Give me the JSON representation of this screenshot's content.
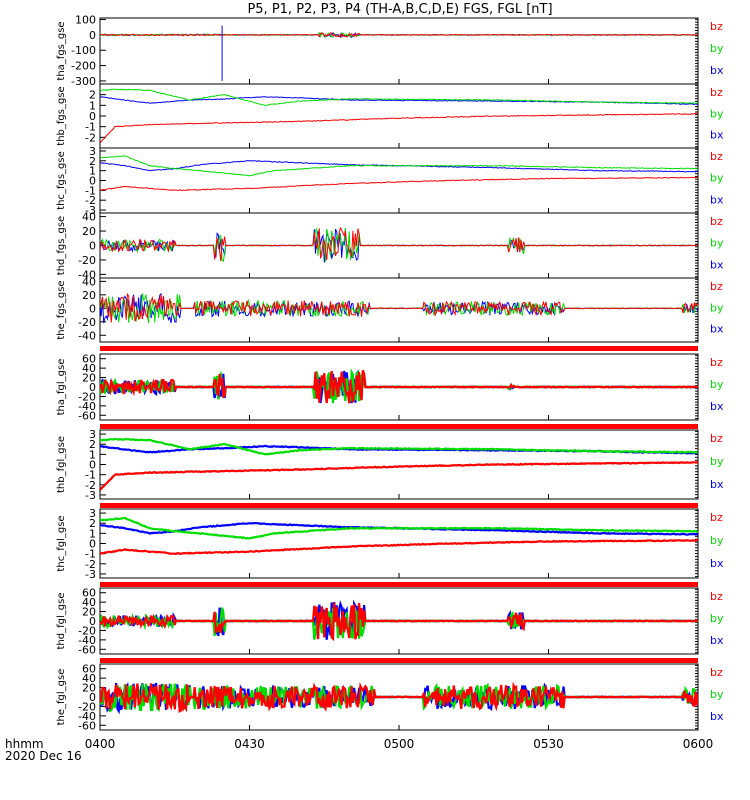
{
  "title": "P5, P1, P2, P3, P4 (TH-A,B,C,D,E) FGS, FGL [nT]",
  "footer": {
    "line1": "hhmm",
    "line2": "2020 Dec 16"
  },
  "colors": {
    "bz": "#ff0000",
    "by": "#00dd00",
    "bx": "#0000ff",
    "axis": "#000000",
    "bar": "#ff0000"
  },
  "chart_data": {
    "type": "line",
    "title": "P5, P1, P2, P3, P4 (TH-A,B,C,D,E) FGS, FGL [nT]",
    "x_ticks": [
      "0400",
      "0430",
      "0500",
      "0530",
      "0600"
    ],
    "x_range_minutes": [
      0,
      120
    ],
    "legend": [
      "bz",
      "by",
      "bx"
    ],
    "legend_placement": "right",
    "panels": [
      {
        "ylabel": "tha_fgs_gse",
        "yticks": [
          "100",
          "0",
          "-100",
          "-200",
          "-300"
        ],
        "ylim": [
          -320,
          110
        ],
        "style": "thin",
        "bar_below": false,
        "bz": [
          [
            0,
            0
          ],
          [
            120,
            0
          ]
        ],
        "by": [
          [
            0,
            0
          ],
          [
            120,
            0
          ]
        ],
        "bx": [
          [
            0,
            0
          ],
          [
            120,
            0
          ]
        ],
        "bursts": [
          {
            "t": [
              0,
              24
            ],
            "amp": 4
          },
          {
            "t": [
              44,
              52
            ],
            "amp": 15
          }
        ],
        "spikes": [
          {
            "t": 24.5,
            "lo": -300,
            "hi": 60
          }
        ]
      },
      {
        "ylabel": "thb_fgs_gse",
        "yticks": [
          "2",
          "1",
          "0",
          "-1",
          "-2"
        ],
        "ylim": [
          -3,
          3
        ],
        "style": "thin",
        "bar_below": false,
        "bz": [
          [
            0,
            -2.5
          ],
          [
            3,
            -1
          ],
          [
            10,
            -0.8
          ],
          [
            20,
            -0.7
          ],
          [
            40,
            -0.5
          ],
          [
            60,
            -0.2
          ],
          [
            80,
            0
          ],
          [
            100,
            0.1
          ],
          [
            120,
            0.2
          ]
        ],
        "by": [
          [
            0,
            2.4
          ],
          [
            3,
            2.5
          ],
          [
            10,
            2.4
          ],
          [
            18,
            1.5
          ],
          [
            25,
            2
          ],
          [
            33,
            1
          ],
          [
            40,
            1.4
          ],
          [
            50,
            1.6
          ],
          [
            80,
            1.5
          ],
          [
            100,
            1.3
          ],
          [
            120,
            1.2
          ]
        ],
        "bx": [
          [
            0,
            1.8
          ],
          [
            3,
            1.6
          ],
          [
            10,
            1.2
          ],
          [
            18,
            1.5
          ],
          [
            25,
            1.6
          ],
          [
            33,
            1.8
          ],
          [
            40,
            1.7
          ],
          [
            50,
            1.5
          ],
          [
            80,
            1.4
          ],
          [
            100,
            1.3
          ],
          [
            120,
            1.1
          ]
        ],
        "bursts": [],
        "spikes": []
      },
      {
        "ylabel": "thc_fgs_gse",
        "yticks": [
          "3",
          "2",
          "1",
          "0",
          "-1",
          "-2",
          "-3"
        ],
        "ylim": [
          -3.3,
          3.3
        ],
        "style": "thin",
        "bar_below": false,
        "bz": [
          [
            0,
            -1
          ],
          [
            5,
            -0.6
          ],
          [
            15,
            -1
          ],
          [
            30,
            -0.8
          ],
          [
            50,
            -0.3
          ],
          [
            70,
            0
          ],
          [
            90,
            0.2
          ],
          [
            120,
            0.3
          ]
        ],
        "by": [
          [
            0,
            2.3
          ],
          [
            5,
            2.5
          ],
          [
            10,
            1.5
          ],
          [
            15,
            1.2
          ],
          [
            20,
            1
          ],
          [
            30,
            0.5
          ],
          [
            35,
            1
          ],
          [
            50,
            1.5
          ],
          [
            80,
            1.5
          ],
          [
            100,
            1.3
          ],
          [
            120,
            1.2
          ]
        ],
        "bx": [
          [
            0,
            1.8
          ],
          [
            5,
            1.5
          ],
          [
            10,
            1
          ],
          [
            15,
            1.2
          ],
          [
            20,
            1.6
          ],
          [
            30,
            2
          ],
          [
            40,
            1.8
          ],
          [
            50,
            1.6
          ],
          [
            80,
            1.3
          ],
          [
            100,
            1
          ],
          [
            120,
            0.9
          ]
        ],
        "bursts": [],
        "spikes": []
      },
      {
        "ylabel": "thd_fgs_gse",
        "yticks": [
          "40",
          "20",
          "0",
          "-20",
          "-40"
        ],
        "ylim": [
          -45,
          45
        ],
        "style": "thin",
        "bar_below": false,
        "bz": [
          [
            0,
            0
          ],
          [
            120,
            0
          ]
        ],
        "by": [
          [
            0,
            0
          ],
          [
            120,
            0
          ]
        ],
        "bx": [
          [
            0,
            0
          ],
          [
            120,
            0
          ]
        ],
        "bursts": [
          {
            "t": [
              0,
              15
            ],
            "amp": 8
          },
          {
            "t": [
              23,
              25
            ],
            "amp": 22
          },
          {
            "t": [
              43,
              52
            ],
            "amp": 25
          },
          {
            "t": [
              82,
              85
            ],
            "amp": 12
          }
        ],
        "spikes": []
      },
      {
        "ylabel": "the_fgs_gse",
        "yticks": [
          "40",
          "20",
          "0",
          "-20",
          "-40"
        ],
        "ylim": [
          -50,
          45
        ],
        "style": "thin",
        "bar_below": true,
        "bz": [
          [
            0,
            0
          ],
          [
            120,
            0
          ]
        ],
        "by": [
          [
            0,
            0
          ],
          [
            120,
            0
          ]
        ],
        "bx": [
          [
            0,
            0
          ],
          [
            120,
            0
          ]
        ],
        "bursts": [
          {
            "t": [
              0,
              16
            ],
            "amp": 22
          },
          {
            "t": [
              19,
              54
            ],
            "amp": 12
          },
          {
            "t": [
              65,
              93
            ],
            "amp": 10
          },
          {
            "t": [
              117,
              120
            ],
            "amp": 8
          }
        ],
        "spikes": []
      },
      {
        "ylabel": "tha_fgl_gse",
        "yticks": [
          "60",
          "40",
          "20",
          "0",
          "-20",
          "-40",
          "-60"
        ],
        "ylim": [
          -70,
          70
        ],
        "style": "thick",
        "bar_below": true,
        "bz": [
          [
            0,
            0
          ],
          [
            120,
            0
          ]
        ],
        "by": [
          [
            0,
            0
          ],
          [
            120,
            0
          ]
        ],
        "bx": [
          [
            0,
            0
          ],
          [
            120,
            0
          ]
        ],
        "bursts": [
          {
            "t": [
              0,
              15
            ],
            "amp": 15
          },
          {
            "t": [
              23,
              25
            ],
            "amp": 28
          },
          {
            "t": [
              43,
              53
            ],
            "amp": 35
          },
          {
            "t": [
              82,
              83
            ],
            "amp": 4
          }
        ],
        "spikes": []
      },
      {
        "ylabel": "thb_fgl_gse",
        "yticks": [
          "3",
          "2",
          "1",
          "0",
          "-1",
          "-2",
          "-3"
        ],
        "ylim": [
          -3.4,
          3.4
        ],
        "style": "thick",
        "bar_below": true,
        "bz": [
          [
            0,
            -2.5
          ],
          [
            3,
            -1
          ],
          [
            10,
            -0.8
          ],
          [
            20,
            -0.7
          ],
          [
            40,
            -0.5
          ],
          [
            60,
            -0.2
          ],
          [
            80,
            0
          ],
          [
            100,
            0.1
          ],
          [
            120,
            0.2
          ]
        ],
        "by": [
          [
            0,
            2.4
          ],
          [
            3,
            2.5
          ],
          [
            10,
            2.4
          ],
          [
            18,
            1.5
          ],
          [
            25,
            2
          ],
          [
            33,
            1
          ],
          [
            40,
            1.4
          ],
          [
            50,
            1.6
          ],
          [
            80,
            1.5
          ],
          [
            100,
            1.3
          ],
          [
            120,
            1.2
          ]
        ],
        "bx": [
          [
            0,
            1.8
          ],
          [
            3,
            1.6
          ],
          [
            10,
            1.2
          ],
          [
            18,
            1.5
          ],
          [
            25,
            1.6
          ],
          [
            33,
            1.8
          ],
          [
            40,
            1.7
          ],
          [
            50,
            1.5
          ],
          [
            80,
            1.4
          ],
          [
            100,
            1.3
          ],
          [
            120,
            1.1
          ]
        ],
        "bursts": [],
        "spikes": []
      },
      {
        "ylabel": "thc_fgl_gse",
        "yticks": [
          "3",
          "2",
          "1",
          "0",
          "-1",
          "-2",
          "-3"
        ],
        "ylim": [
          -3.4,
          3.4
        ],
        "style": "thick",
        "bar_below": true,
        "bz": [
          [
            0,
            -1
          ],
          [
            5,
            -0.6
          ],
          [
            15,
            -1
          ],
          [
            30,
            -0.8
          ],
          [
            50,
            -0.3
          ],
          [
            70,
            0
          ],
          [
            90,
            0.2
          ],
          [
            120,
            0.3
          ]
        ],
        "by": [
          [
            0,
            2.3
          ],
          [
            5,
            2.5
          ],
          [
            10,
            1.5
          ],
          [
            15,
            1.2
          ],
          [
            20,
            1
          ],
          [
            30,
            0.5
          ],
          [
            35,
            1
          ],
          [
            50,
            1.5
          ],
          [
            80,
            1.5
          ],
          [
            100,
            1.3
          ],
          [
            120,
            1.2
          ]
        ],
        "bx": [
          [
            0,
            1.8
          ],
          [
            5,
            1.5
          ],
          [
            10,
            1
          ],
          [
            15,
            1.2
          ],
          [
            20,
            1.6
          ],
          [
            30,
            2
          ],
          [
            40,
            1.8
          ],
          [
            50,
            1.6
          ],
          [
            80,
            1.3
          ],
          [
            100,
            1
          ],
          [
            120,
            0.9
          ]
        ],
        "bursts": [],
        "spikes": []
      },
      {
        "ylabel": "thd_fgl_gse",
        "yticks": [
          "60",
          "40",
          "20",
          "0",
          "-20",
          "-40",
          "-60"
        ],
        "ylim": [
          -70,
          70
        ],
        "style": "thick",
        "bar_below": true,
        "bz": [
          [
            0,
            0
          ],
          [
            120,
            0
          ]
        ],
        "by": [
          [
            0,
            0
          ],
          [
            120,
            0
          ]
        ],
        "bx": [
          [
            0,
            0
          ],
          [
            120,
            0
          ]
        ],
        "bursts": [
          {
            "t": [
              0,
              15
            ],
            "amp": 12
          },
          {
            "t": [
              23,
              25
            ],
            "amp": 35
          },
          {
            "t": [
              43,
              53
            ],
            "amp": 40
          },
          {
            "t": [
              82,
              85
            ],
            "amp": 20
          }
        ],
        "spikes": []
      },
      {
        "ylabel": "the_fgl_gse",
        "yticks": [
          "60",
          "40",
          "20",
          "0",
          "-20",
          "-40",
          "-60"
        ],
        "ylim": [
          -70,
          70
        ],
        "style": "thick",
        "bar_below": false,
        "bz": [
          [
            0,
            0
          ],
          [
            120,
            0
          ]
        ],
        "by": [
          [
            0,
            0
          ],
          [
            120,
            0
          ]
        ],
        "bx": [
          [
            0,
            0
          ],
          [
            120,
            0
          ]
        ],
        "bursts": [
          {
            "t": [
              0,
              18
            ],
            "amp": 30
          },
          {
            "t": [
              19,
              55
            ],
            "amp": 25
          },
          {
            "t": [
              65,
              93
            ],
            "amp": 25
          },
          {
            "t": [
              117,
              120
            ],
            "amp": 18
          }
        ],
        "spikes": []
      }
    ]
  }
}
